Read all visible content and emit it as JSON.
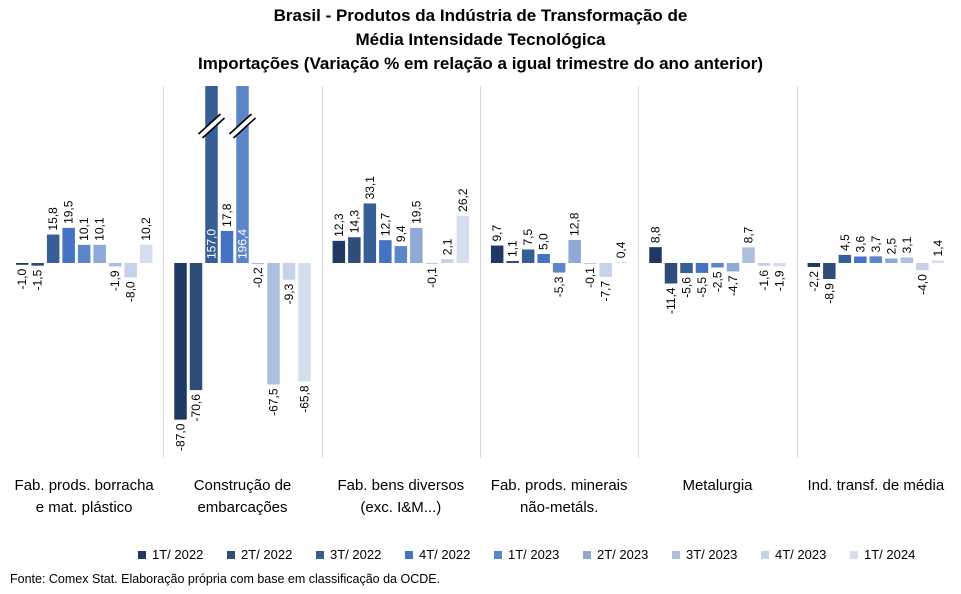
{
  "title_lines": [
    "Brasil - Produtos da Indústria de Transformação de",
    "Média Intensidade Tecnológica",
    "Importações (Variação % em relação a igual trimestre do ano anterior)"
  ],
  "source": "Fonte: Comex Stat. Elaboração própria com base em classificação da OCDE.",
  "colors": [
    "#1f3864",
    "#2e4d7b",
    "#375f96",
    "#4472c4",
    "#5b87c8",
    "#8ea9d6",
    "#adbfdf",
    "#c5d2e9",
    "#d6deee"
  ],
  "chart_data": {
    "type": "bar",
    "title": "Brasil - Produtos da Indústria de Transformação de Média Intensidade Tecnológica — Importações (Variação % em relação a igual trimestre do ano anterior)",
    "xlabel": "",
    "ylabel": "",
    "legend_position": "bottom",
    "grid": false,
    "categories": [
      [
        "Fab. prods. borracha",
        "e mat. plástico"
      ],
      [
        "Construção de",
        "embarcações"
      ],
      [
        "Fab. bens diversos",
        "(exc. I&M...)"
      ],
      [
        "Fab. prods. minerais",
        "não-metáls."
      ],
      [
        "Metalurgia"
      ],
      [
        "Ind. transf. de média"
      ]
    ],
    "series": [
      {
        "name": "1T/ 2022",
        "labels": [
          "-1,0",
          "-87,0",
          "12,3",
          "9,7",
          "8,8",
          "-2,2"
        ],
        "values": [
          -1.0,
          -87.0,
          12.3,
          9.7,
          8.8,
          -2.2
        ]
      },
      {
        "name": "2T/ 2022",
        "labels": [
          "-1,5",
          "-70,6",
          "14,3",
          "1,1",
          "-11,4",
          "-8,9"
        ],
        "values": [
          -1.5,
          -70.6,
          14.3,
          1.1,
          -11.4,
          -8.9
        ]
      },
      {
        "name": "3T/ 2022",
        "labels": [
          "15,8",
          "157,0",
          "33,1",
          "7,5",
          "-5,6",
          "4,5"
        ],
        "values": [
          15.8,
          157.0,
          33.1,
          7.5,
          -5.6,
          4.5
        ]
      },
      {
        "name": "4T/ 2022",
        "labels": [
          "19,5",
          "17,8",
          "12,7",
          "5,0",
          "-5,5",
          "3,6"
        ],
        "values": [
          19.5,
          17.8,
          12.7,
          5.0,
          -5.5,
          3.6
        ]
      },
      {
        "name": "1T/ 2023",
        "labels": [
          "10,1",
          "196,4",
          "9,4",
          "-5,3",
          "-2,5",
          "3,7"
        ],
        "values": [
          10.1,
          196.4,
          9.4,
          -5.3,
          -2.5,
          3.7
        ]
      },
      {
        "name": "2T/ 2023",
        "labels": [
          "10,1",
          "-0,2",
          "19,5",
          "12,8",
          "-4,7",
          "2,5"
        ],
        "values": [
          10.1,
          -0.2,
          19.5,
          12.8,
          -4.7,
          2.5
        ]
      },
      {
        "name": "3T/ 2023",
        "labels": [
          "-1,9",
          "-67,5",
          "-0,1",
          "-0,1",
          "8,7",
          "3,1"
        ],
        "values": [
          -1.9,
          -67.5,
          -0.1,
          -0.1,
          8.7,
          3.1
        ]
      },
      {
        "name": "4T/ 2023",
        "labels": [
          "-8,0",
          "-9,3",
          "2,1",
          "-7,7",
          "-1,6",
          "-4,0"
        ],
        "values": [
          -8.0,
          -9.3,
          2.1,
          -7.7,
          -1.6,
          -4.0
        ]
      },
      {
        "name": "1T/ 2024",
        "labels": [
          "10,2",
          "-65,8",
          "26,2",
          "0,4",
          "-1,9",
          "1,4"
        ],
        "values": [
          10.2,
          -65.8,
          26.2,
          0.4,
          -1.9,
          1.4
        ]
      }
    ],
    "axis_break": "values above the plot top are truncated and marked with a break symbol"
  }
}
